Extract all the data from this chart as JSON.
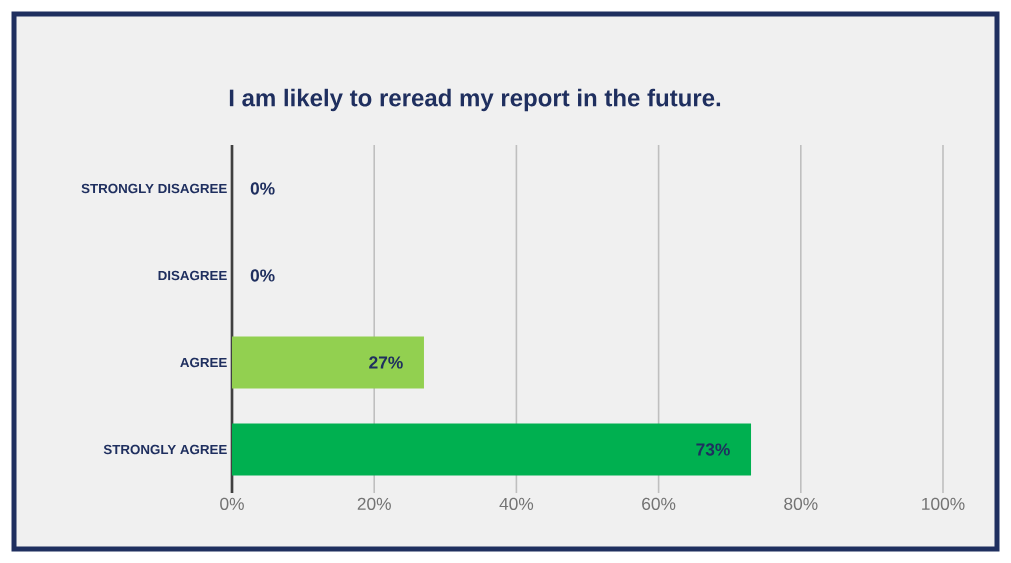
{
  "chart_data": {
    "type": "bar",
    "orientation": "horizontal",
    "title": "I am likely to reread my report in the future.",
    "categories": [
      "STRONGLY DISAGREE",
      "DISAGREE",
      "AGREE",
      "STRONGLY AGREE"
    ],
    "values": [
      0,
      0,
      27,
      73
    ],
    "colors": [
      "#92d050",
      "#92d050",
      "#92d050",
      "#00b050"
    ],
    "value_labels": [
      "0%",
      "0%",
      "27%",
      "73%"
    ],
    "xlim": [
      0,
      100
    ],
    "xticks": [
      {
        "value": 0,
        "label": "0%"
      },
      {
        "value": 20,
        "label": "20%"
      },
      {
        "value": 40,
        "label": "40%"
      },
      {
        "value": 60,
        "label": "60%"
      },
      {
        "value": 80,
        "label": "80%"
      },
      {
        "value": 100,
        "label": "100%"
      }
    ],
    "grid": "x"
  }
}
